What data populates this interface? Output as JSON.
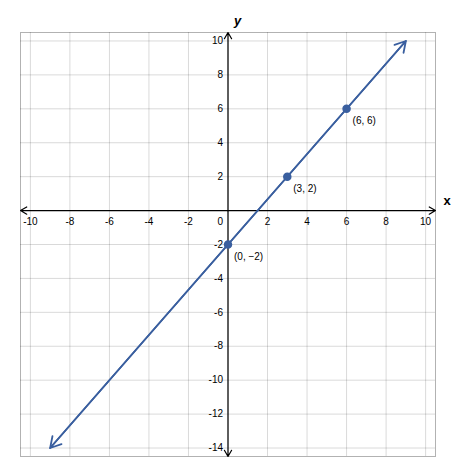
{
  "chart_data": {
    "type": "line",
    "xlabel": "x",
    "ylabel": "y",
    "xlim": [
      -10.5,
      10.5
    ],
    "ylim": [
      -14.5,
      10.5
    ],
    "xticks": [
      -10,
      -8,
      -6,
      -4,
      -2,
      0,
      2,
      4,
      6,
      8,
      10
    ],
    "yticks": [
      -14,
      -12,
      -10,
      -8,
      -6,
      -4,
      -2,
      2,
      4,
      6,
      8,
      10
    ],
    "grid": true,
    "series": [
      {
        "type": "line",
        "x": [
          -9.0,
          9.0
        ],
        "values": [
          -13.9999999997,
          9.9999999997
        ],
        "color": "#3a5f9f"
      },
      {
        "type": "scatter",
        "x": [
          0,
          3,
          6
        ],
        "values": [
          -2,
          2,
          6
        ],
        "color": "#3a5f9f",
        "data_labels": true,
        "value_labels": [
          "(0, −2)",
          "(3, 2)",
          "(6, 6)"
        ]
      }
    ]
  }
}
